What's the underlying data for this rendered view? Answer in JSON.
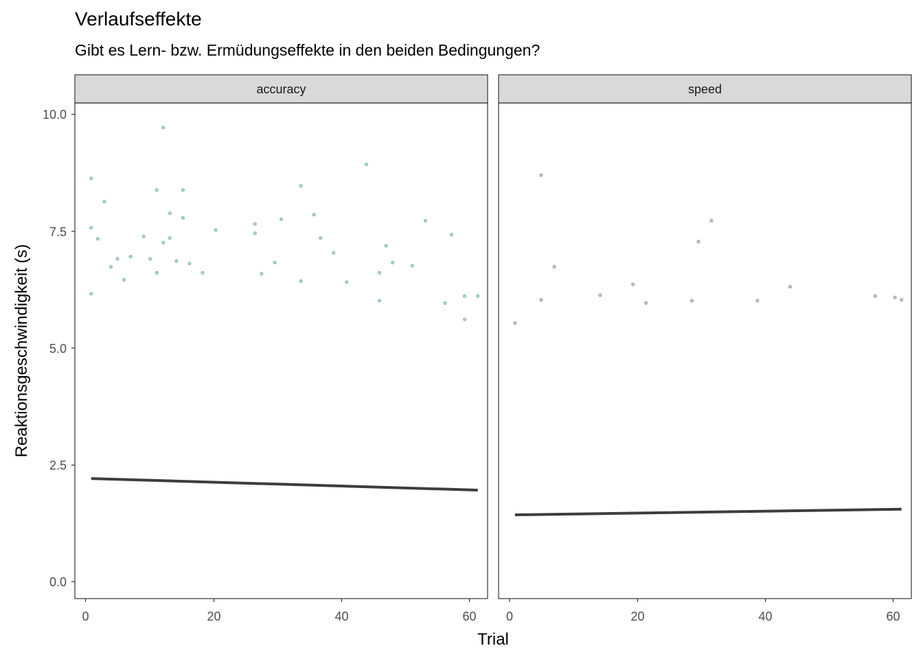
{
  "title": "Verlaufseffekte",
  "subtitle": "Gibt es Lern- bzw. Ermüdungseffekte in den beiden Bedingungen?",
  "chart_data": {
    "type": "scatter",
    "xlabel": "Trial",
    "ylabel": "Reaktionsgeschwindigkeit (s)",
    "xlim": [
      -1.5,
      61.5
    ],
    "ylim": [
      -0.4,
      10.25
    ],
    "x_ticks": [
      "0",
      "20",
      "40",
      "60"
    ],
    "y_ticks": [
      "0.0",
      "2.5",
      "5.0",
      "7.5",
      "10.0"
    ],
    "grid": false,
    "panels": [
      {
        "name": "accuracy",
        "color": "#6aa6a6",
        "trend": {
          "x": [
            1,
            60
          ],
          "y": [
            2.18,
            1.93
          ]
        },
        "points": [
          [
            1,
            8.63
          ],
          [
            1,
            7.57
          ],
          [
            2,
            7.33
          ],
          [
            3,
            8.13
          ],
          [
            4,
            6.73
          ],
          [
            5,
            6.9
          ],
          [
            6,
            6.45
          ],
          [
            7,
            6.95
          ],
          [
            9,
            7.38
          ],
          [
            10,
            6.9
          ],
          [
            11,
            8.38
          ],
          [
            11,
            6.6
          ],
          [
            12,
            9.72
          ],
          [
            12,
            7.25
          ],
          [
            13,
            7.88
          ],
          [
            13,
            7.35
          ],
          [
            14,
            6.85
          ],
          [
            15,
            8.38
          ],
          [
            15,
            7.78
          ],
          [
            16,
            6.8
          ],
          [
            18,
            6.6
          ],
          [
            20,
            7.52
          ],
          [
            26,
            7.65
          ],
          [
            26,
            7.45
          ],
          [
            27,
            6.58
          ],
          [
            29,
            6.82
          ],
          [
            30,
            7.75
          ],
          [
            33,
            8.47
          ],
          [
            33,
            6.42
          ],
          [
            35,
            7.85
          ],
          [
            36,
            7.35
          ],
          [
            38,
            7.03
          ],
          [
            40,
            6.4
          ],
          [
            43,
            8.93
          ],
          [
            45,
            6.6
          ],
          [
            46,
            7.18
          ],
          [
            47,
            6.82
          ],
          [
            50,
            6.75
          ],
          [
            52,
            7.72
          ],
          [
            56,
            7.42
          ],
          [
            1,
            6.15
          ],
          [
            58,
            6.1
          ],
          [
            58,
            5.6
          ],
          [
            60,
            6.1
          ],
          [
            55,
            5.95
          ],
          [
            45,
            6.0
          ]
        ]
      },
      {
        "name": "speed",
        "color": "#9c8671",
        "trend": {
          "x": [
            1,
            60
          ],
          "y": [
            1.4,
            1.52
          ]
        },
        "points": [
          [
            5,
            8.7
          ],
          [
            31,
            7.72
          ],
          [
            29,
            7.27
          ],
          [
            7,
            6.73
          ],
          [
            19,
            6.35
          ],
          [
            43,
            6.3
          ],
          [
            56,
            6.1
          ],
          [
            59,
            6.07
          ],
          [
            60,
            6.02
          ],
          [
            5,
            6.02
          ],
          [
            14,
            6.12
          ],
          [
            38,
            6.0
          ],
          [
            21,
            5.95
          ],
          [
            28,
            6.0
          ],
          [
            1,
            5.52
          ]
        ]
      }
    ]
  }
}
